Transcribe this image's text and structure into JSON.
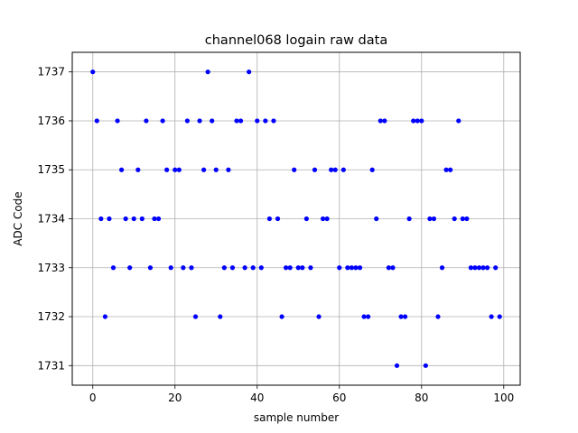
{
  "chart_data": {
    "type": "scatter",
    "title": "channel068 logain raw data",
    "xlabel": "sample number",
    "ylabel": "ADC Code",
    "xlim": [
      -5,
      104
    ],
    "ylim": [
      1730.6,
      1737.4
    ],
    "x_ticks": [
      0,
      20,
      40,
      60,
      80,
      100
    ],
    "y_ticks": [
      1731,
      1732,
      1733,
      1734,
      1735,
      1736,
      1737
    ],
    "grid": true,
    "marker": "dot",
    "color": "#0000ff",
    "series": [
      {
        "x": [
          0,
          1,
          2,
          3,
          4,
          5,
          6,
          7,
          8,
          9,
          10,
          11,
          12,
          13,
          14,
          15,
          16,
          17,
          18,
          19,
          20,
          21,
          22,
          23,
          24,
          25,
          26,
          27,
          28,
          29,
          30,
          31,
          32,
          33,
          34,
          35,
          36,
          37,
          38,
          39,
          40,
          41,
          42,
          43,
          44,
          45,
          46,
          47,
          48,
          49,
          50,
          51,
          52,
          53,
          54,
          55,
          56,
          57,
          58,
          59,
          60,
          61,
          62,
          63,
          64,
          65,
          66,
          67,
          68,
          69,
          70,
          71,
          72,
          73,
          74,
          75,
          76,
          77,
          78,
          79,
          80,
          81,
          82,
          83,
          84,
          85,
          86,
          87,
          88,
          89,
          90,
          91,
          92,
          93,
          94,
          95,
          96,
          97,
          98,
          99
        ],
        "y": [
          1737,
          1736,
          1734,
          1732,
          1734,
          1733,
          1736,
          1735,
          1734,
          1733,
          1734,
          1735,
          1734,
          1736,
          1733,
          1734,
          1734,
          1736,
          1735,
          1733,
          1735,
          1735,
          1733,
          1736,
          1733,
          1732,
          1736,
          1735,
          1737,
          1736,
          1735,
          1732,
          1733,
          1735,
          1733,
          1736,
          1736,
          1733,
          1737,
          1733,
          1736,
          1733,
          1736,
          1734,
          1736,
          1734,
          1732,
          1733,
          1733,
          1735,
          1733,
          1733,
          1734,
          1733,
          1735,
          1732,
          1734,
          1734,
          1735,
          1735,
          1733,
          1735,
          1733,
          1733,
          1733,
          1733,
          1732,
          1732,
          1735,
          1734,
          1736,
          1736,
          1733,
          1733,
          1731,
          1732,
          1732,
          1734,
          1736,
          1736,
          1736,
          1731,
          1734,
          1734,
          1732,
          1733,
          1735,
          1735,
          1734,
          1736,
          1734,
          1734,
          1733,
          1733,
          1733,
          1733,
          1733,
          1732,
          1733,
          1732
        ]
      }
    ]
  }
}
